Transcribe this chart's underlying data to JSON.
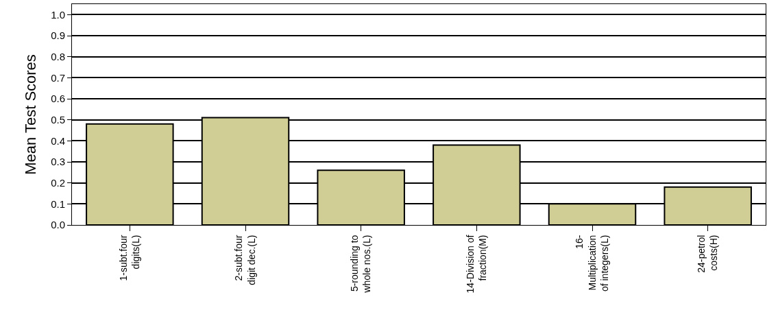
{
  "chart_data": {
    "type": "bar",
    "ylabel": "Mean Test Scores",
    "categories": [
      "1-subt.four\ndigits(L)",
      "2-subt.four\ndigit dec.(L)",
      "5-rounding to\nwhole nos.(L)",
      "14-Division of\nfraction(M)",
      "16-\nMultiplication\nof integers(L)",
      "24-petrol\ncosts(H)"
    ],
    "values": [
      0.48,
      0.51,
      0.26,
      0.38,
      0.1,
      0.18
    ],
    "color": "#d0cd95",
    "ylim": [
      0,
      1.05
    ],
    "yticks": [
      {
        "value": 0,
        "label": "0.0"
      },
      {
        "value": 0.1,
        "label": "0.1"
      },
      {
        "value": 0.2,
        "label": "0.2"
      },
      {
        "value": 0.3,
        "label": "0.3"
      },
      {
        "value": 0.4,
        "label": "0.4"
      },
      {
        "value": 0.5,
        "label": "0.5"
      },
      {
        "value": 0.6,
        "label": "0.6"
      },
      {
        "value": 0.7,
        "label": "0.7"
      },
      {
        "value": 0.8,
        "label": "0.8"
      },
      {
        "value": 0.9,
        "label": "0.9"
      },
      {
        "value": 1.0,
        "label": "1.0"
      }
    ],
    "grid": "y",
    "legend": false
  }
}
